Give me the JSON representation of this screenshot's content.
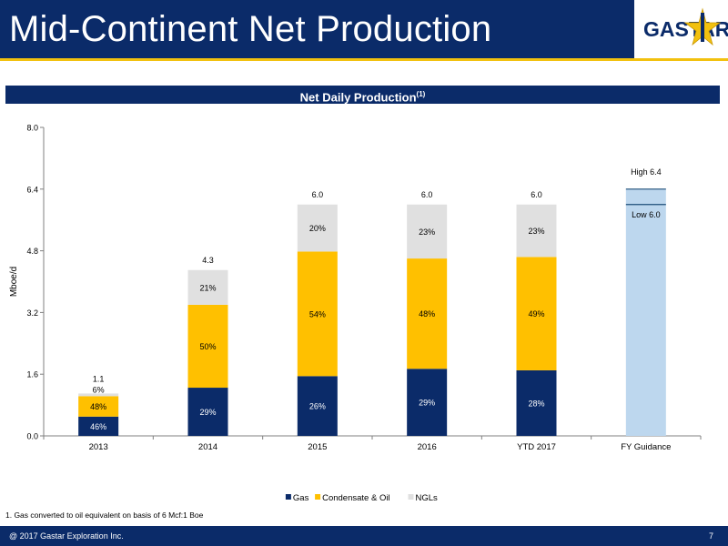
{
  "slide": {
    "title": "Mid-Continent Net Production",
    "logo_text": "GASTAR",
    "section_title": "Net Daily Production",
    "section_title_note": "(1)",
    "footnote": "1. Gas converted to oil equivalent on basis of 6 Mcf:1 Boe",
    "copyright": "@ 2017 Gastar Exploration Inc.",
    "page_number": "7"
  },
  "colors": {
    "navy": "#0b2b69",
    "gold": "#f2c10f",
    "gas": "#0b2b69",
    "condensate": "#ffc000",
    "ngls": "#e0e0e0",
    "guidance": "#bdd7ee"
  },
  "chart_data": {
    "type": "bar",
    "stacked": true,
    "ylabel": "Mboe/d",
    "ylim": [
      0,
      8.0
    ],
    "yticks": [
      "0.0",
      "1.6",
      "3.2",
      "4.8",
      "6.4",
      "8.0"
    ],
    "categories": [
      "2013",
      "2014",
      "2015",
      "2016",
      "YTD 2017",
      "FY Guidance"
    ],
    "series": [
      {
        "name": "Gas",
        "values": [
          0.5,
          1.25,
          1.55,
          1.74,
          1.7,
          null
        ],
        "labels": [
          "46%",
          "29%",
          "26%",
          "29%",
          "28%",
          ""
        ]
      },
      {
        "name": "Condensate & Oil",
        "values": [
          0.53,
          2.15,
          3.23,
          2.86,
          2.94,
          null
        ],
        "labels": [
          "48%",
          "50%",
          "54%",
          "48%",
          "49%",
          ""
        ]
      },
      {
        "name": "NGLs",
        "values": [
          0.07,
          0.9,
          1.22,
          1.4,
          1.36,
          null
        ],
        "labels": [
          "6%",
          "21%",
          "20%",
          "23%",
          "23%",
          ""
        ]
      }
    ],
    "totals": [
      "1.1",
      "4.3",
      "6.0",
      "6.0",
      "6.0",
      ""
    ],
    "guidance": {
      "low": 6.0,
      "high": 6.4,
      "low_label": "Low 6.0",
      "high_label": "High 6.4"
    },
    "legend": "bottom-center",
    "grid": false
  }
}
